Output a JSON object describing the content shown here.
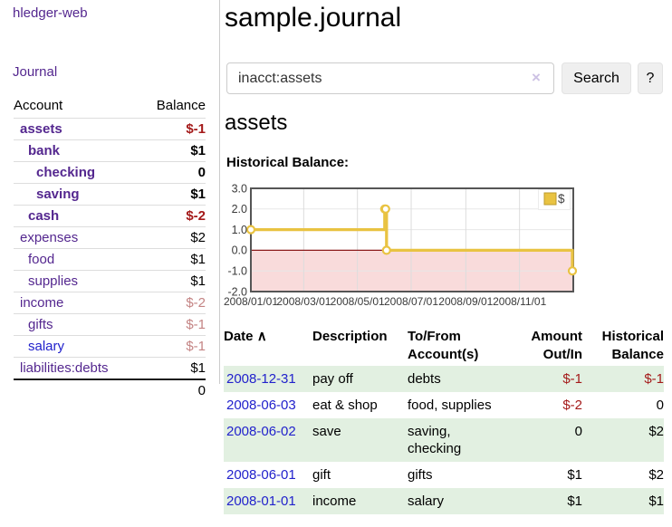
{
  "app": {
    "title": "hledger-web"
  },
  "sidebar": {
    "journal_label": "Journal",
    "table": {
      "headers": {
        "account": "Account",
        "balance": "Balance"
      },
      "rows": [
        {
          "account": "assets",
          "balance": "$-1"
        },
        {
          "account": "bank",
          "balance": "$1"
        },
        {
          "account": "checking",
          "balance": "0"
        },
        {
          "account": "saving",
          "balance": "$1"
        },
        {
          "account": "cash",
          "balance": "$-2"
        },
        {
          "account": "expenses",
          "balance": "$2"
        },
        {
          "account": "food",
          "balance": "$1"
        },
        {
          "account": "supplies",
          "balance": "$1"
        },
        {
          "account": "income",
          "balance": "$-2"
        },
        {
          "account": "gifts",
          "balance": "$-1"
        },
        {
          "account": "salary",
          "balance": "$-1"
        },
        {
          "account": "liabilities:debts",
          "balance": "$1"
        }
      ],
      "total": "0"
    }
  },
  "main": {
    "title": "sample.journal",
    "search": {
      "value": "inacct:assets",
      "clear_icon": "×",
      "search_label": "Search",
      "help_label": "?"
    },
    "account_heading": "assets",
    "chart_label": "Historical Balance:",
    "register": {
      "headers": {
        "date": "Date",
        "sort_icon": "∧",
        "description": "Description",
        "accounts": "To/From\nAccount(s)",
        "amount": "Amount\nOut/In",
        "balance": "Historical\nBalance"
      },
      "rows": [
        {
          "date": "2008-12-31",
          "description": "pay off",
          "accounts": "debts",
          "amount": "$-1",
          "balance": "$-1"
        },
        {
          "date": "2008-06-03",
          "description": "eat & shop",
          "accounts": "food, supplies",
          "amount": "$-2",
          "balance": "0"
        },
        {
          "date": "2008-06-02",
          "description": "save",
          "accounts": "saving,\nchecking",
          "amount": "0",
          "balance": "$2"
        },
        {
          "date": "2008-06-01",
          "description": "gift",
          "accounts": "gifts",
          "amount": "$1",
          "balance": "$2"
        },
        {
          "date": "2008-01-01",
          "description": "income",
          "accounts": "salary",
          "amount": "$1",
          "balance": "$1"
        }
      ]
    }
  },
  "chart_data": {
    "type": "line",
    "step": true,
    "title": "Historical Balance:",
    "legend": [
      {
        "label": "$",
        "color": "#e9c342"
      }
    ],
    "legend_position": "top-right",
    "grid": true,
    "series": [
      {
        "name": "$",
        "points": [
          [
            "2008-01-01",
            1
          ],
          [
            "2008-06-01",
            2
          ],
          [
            "2008-06-02",
            2
          ],
          [
            "2008-06-03",
            0
          ],
          [
            "2008-12-31",
            -1
          ]
        ]
      }
    ],
    "xlim": [
      "2008-01-01",
      "2009-01-01"
    ],
    "ylim": [
      -2,
      3
    ],
    "yticks": [
      3,
      2,
      1,
      0,
      -1,
      -2
    ],
    "ytick_labels": [
      "3.0",
      "2.0",
      "1.0",
      "0.0",
      "-1.0",
      "-2.0"
    ],
    "xticks": [
      "2008-01-01",
      "2008-03-01",
      "2008-05-01",
      "2008-07-01",
      "2008-09-01",
      "2008-11-01"
    ],
    "xtick_labels": [
      "2008/01/01",
      "2008/03/01",
      "2008/05/01",
      "2008/07/01",
      "2008/09/01",
      "2008/11/01"
    ],
    "colors": {
      "line": "#e9c342",
      "marker_fill": "#ffffff",
      "below_zero_fill": "#f9dbdb",
      "zero_line": "#8b1a1a",
      "border": "#555555",
      "grid": "#dcdcdc"
    }
  }
}
